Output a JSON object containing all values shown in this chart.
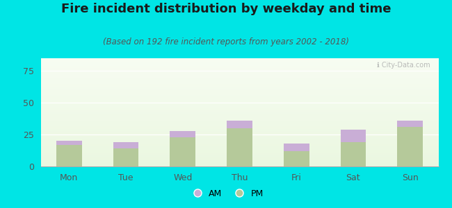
{
  "title": "Fire incident distribution by weekday and time",
  "subtitle": "(Based on 192 fire incident reports from years 2002 - 2018)",
  "days": [
    "Mon",
    "Tue",
    "Wed",
    "Thu",
    "Fri",
    "Sat",
    "Sun"
  ],
  "pm_values": [
    17,
    14,
    23,
    30,
    12,
    19,
    31
  ],
  "am_values": [
    3,
    5,
    5,
    6,
    6,
    10,
    5
  ],
  "am_color": "#c9aed6",
  "pm_color": "#b5c99a",
  "background_color": "#00e5e5",
  "ylim": [
    0,
    85
  ],
  "yticks": [
    0,
    25,
    50,
    75
  ],
  "watermark": "ℹ City-Data.com",
  "title_fontsize": 13,
  "subtitle_fontsize": 8.5,
  "tick_fontsize": 9
}
